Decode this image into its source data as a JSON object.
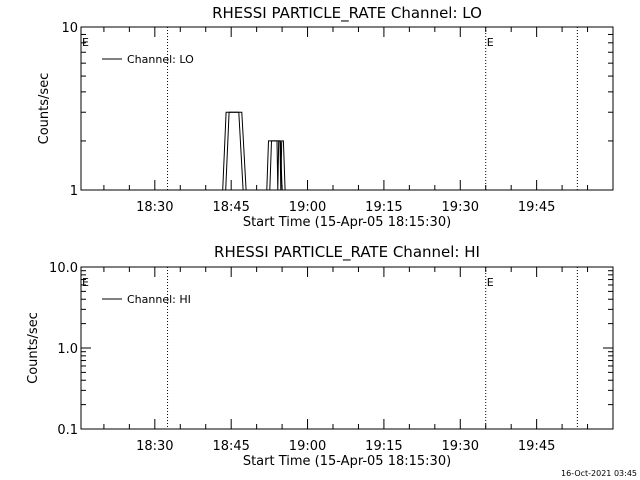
{
  "chart_data": [
    {
      "type": "line",
      "title": "RHESSI PARTICLE_RATE Channel: LO",
      "xlabel": "Start Time (15-Apr-05 18:15:30)",
      "ylabel": "Counts/sec",
      "yscale": "log",
      "ylim": [
        1,
        10
      ],
      "yticks": [
        {
          "value": 1,
          "label": "1"
        },
        {
          "value": 10,
          "label": "10"
        }
      ],
      "xlim": [
        "18:15:30",
        "20:00:00"
      ],
      "xticks": [
        "18:30",
        "18:45",
        "19:00",
        "19:15",
        "19:30",
        "19:45"
      ],
      "grid": false,
      "legend": {
        "position": "top-left",
        "entries": [
          "Channel: LO"
        ]
      },
      "event_lines": [
        {
          "time": "18:32:30",
          "marker": ""
        },
        {
          "time": "19:35:00",
          "marker": "E"
        },
        {
          "time": "19:53:00",
          "marker": ""
        }
      ],
      "event_marker_left": "E",
      "series": [
        {
          "name": "Channel: LO",
          "x": [
            "18:43:20",
            "18:44:00",
            "18:44:20",
            "18:46:30",
            "18:47:20",
            "18:47:40",
            "18:52:00",
            "18:52:20",
            "18:54:00",
            "18:54:10",
            "18:54:20",
            "18:54:40",
            "18:55:00",
            "18:55:10"
          ],
          "y": [
            1,
            3,
            3,
            3,
            1,
            1,
            1,
            2,
            2,
            1,
            2,
            2,
            1,
            1
          ]
        }
      ]
    },
    {
      "type": "line",
      "title": "RHESSI PARTICLE_RATE Channel: HI",
      "xlabel": "Start Time (15-Apr-05 18:15:30)",
      "ylabel": "Counts/sec",
      "yscale": "log",
      "ylim": [
        0.1,
        10
      ],
      "yticks": [
        {
          "value": 0.1,
          "label": "0.1"
        },
        {
          "value": 1,
          "label": "1.0"
        },
        {
          "value": 10,
          "label": "10.0"
        }
      ],
      "xlim": [
        "18:15:30",
        "20:00:00"
      ],
      "xticks": [
        "18:30",
        "18:45",
        "19:00",
        "19:15",
        "19:30",
        "19:45"
      ],
      "grid": false,
      "legend": {
        "position": "top-left",
        "entries": [
          "Channel: HI"
        ]
      },
      "event_lines": [
        {
          "time": "18:32:30",
          "marker": ""
        },
        {
          "time": "19:35:00",
          "marker": "E"
        },
        {
          "time": "19:53:00",
          "marker": ""
        }
      ],
      "event_marker_left": "E",
      "series": [
        {
          "name": "Channel: HI",
          "x": [],
          "y": []
        }
      ]
    }
  ],
  "footer": {
    "timestamp": "16-Oct-2021 03:45"
  }
}
